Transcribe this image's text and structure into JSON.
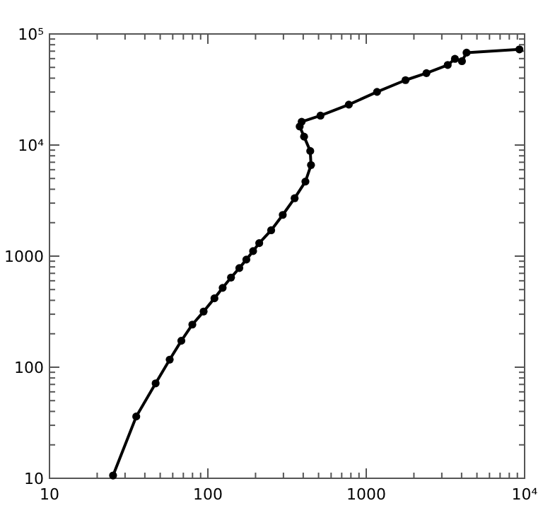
{
  "chart_data": {
    "type": "line",
    "log": "xy",
    "marker": "circle",
    "line_style": "solid",
    "grid": false,
    "xlim": [
      10,
      10000
    ],
    "ylim": [
      10,
      100000
    ],
    "xticks": [
      10,
      {
        "value": 20,
        "label": null
      },
      {
        "value": 30,
        "label": null
      },
      {
        "value": 40,
        "label": null
      },
      {
        "value": 50,
        "label": null
      },
      {
        "value": 60,
        "label": null
      },
      {
        "value": 70,
        "label": null
      },
      {
        "value": 80,
        "label": null
      },
      {
        "value": 90,
        "label": null
      },
      100,
      {
        "value": 200,
        "label": null
      },
      {
        "value": 300,
        "label": null
      },
      {
        "value": 400,
        "label": null
      },
      {
        "value": 500,
        "label": null
      },
      {
        "value": 600,
        "label": null
      },
      {
        "value": 700,
        "label": null
      },
      {
        "value": 800,
        "label": null
      },
      {
        "value": 900,
        "label": null
      },
      1000,
      {
        "value": 2000,
        "label": null
      },
      {
        "value": 3000,
        "label": null
      },
      {
        "value": 4000,
        "label": null
      },
      {
        "value": 5000,
        "label": null
      },
      {
        "value": 6000,
        "label": null
      },
      {
        "value": 7000,
        "label": null
      },
      {
        "value": 8000,
        "label": null
      },
      {
        "value": 9000,
        "label": null
      },
      {
        "value": 10000,
        "label": "10⁴"
      }
    ],
    "yticks": [
      10,
      {
        "value": 20,
        "label": null
      },
      {
        "value": 30,
        "label": null
      },
      {
        "value": 40,
        "label": null
      },
      {
        "value": 50,
        "label": null
      },
      {
        "value": 60,
        "label": null
      },
      {
        "value": 70,
        "label": null
      },
      {
        "value": 80,
        "label": null
      },
      {
        "value": 90,
        "label": null
      },
      100,
      {
        "value": 200,
        "label": null
      },
      {
        "value": 300,
        "label": null
      },
      {
        "value": 400,
        "label": null
      },
      {
        "value": 500,
        "label": null
      },
      {
        "value": 600,
        "label": null
      },
      {
        "value": 700,
        "label": null
      },
      {
        "value": 800,
        "label": null
      },
      {
        "value": 900,
        "label": null
      },
      1000,
      {
        "value": 2000,
        "label": null
      },
      {
        "value": 3000,
        "label": null
      },
      {
        "value": 4000,
        "label": null
      },
      {
        "value": 5000,
        "label": null
      },
      {
        "value": 6000,
        "label": null
      },
      {
        "value": 7000,
        "label": null
      },
      {
        "value": 8000,
        "label": null
      },
      {
        "value": 9000,
        "label": null
      },
      {
        "value": 10000,
        "label": "10⁴"
      },
      {
        "value": 20000,
        "label": null
      },
      {
        "value": 30000,
        "label": null
      },
      {
        "value": 40000,
        "label": null
      },
      {
        "value": 50000,
        "label": null
      },
      {
        "value": 60000,
        "label": null
      },
      {
        "value": 70000,
        "label": null
      },
      {
        "value": 80000,
        "label": null
      },
      {
        "value": 90000,
        "label": null
      },
      {
        "value": 100000,
        "label": "10⁵"
      }
    ],
    "series": [
      {
        "color": "#000000",
        "x": [
          25.2,
          35.3,
          46.8,
          57.4,
          68,
          79.8,
          94,
          110,
          124,
          140,
          158,
          175,
          193,
          211,
          251,
          297,
          353,
          413,
          448,
          443,
          405,
          380,
          391,
          514,
          776,
          1170,
          1770,
          2400,
          3270,
          3630,
          4020,
          4300,
          9270
        ],
        "values": [
          10.6,
          36,
          71.6,
          117,
          173,
          242,
          317,
          417,
          518,
          641,
          781,
          931,
          1110,
          1310,
          1710,
          2350,
          3320,
          4690,
          6600,
          8840,
          11900,
          14700,
          16200,
          18400,
          23100,
          30100,
          38400,
          44400,
          52600,
          59700,
          56900,
          67900,
          72600
        ]
      }
    ]
  }
}
